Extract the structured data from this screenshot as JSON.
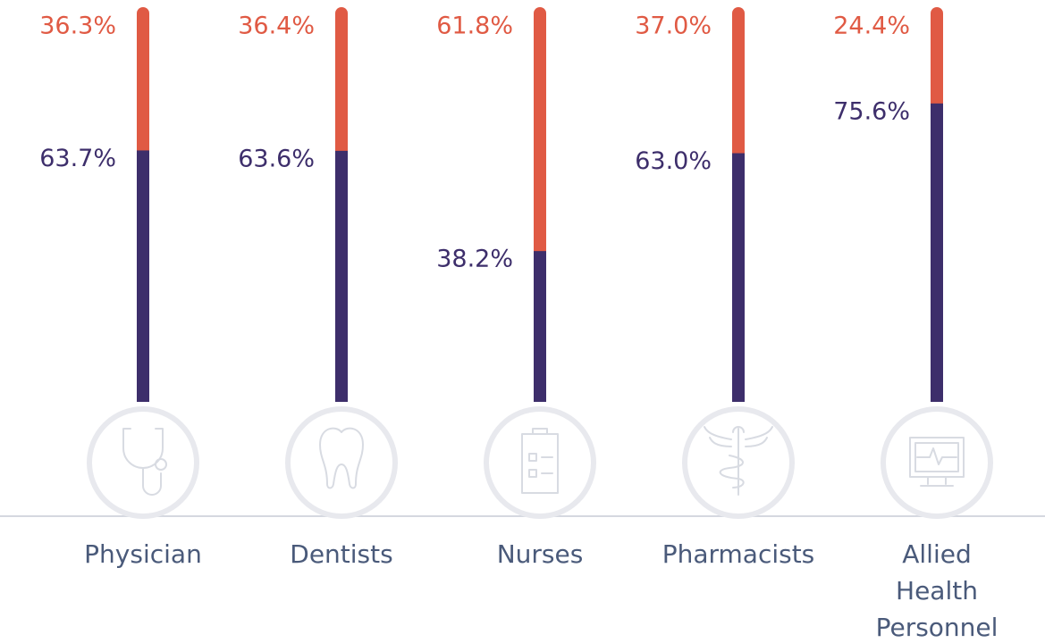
{
  "chart_data": {
    "type": "bar",
    "stacked": true,
    "categories": [
      "Physician",
      "Dentists",
      "Nurses",
      "Pharmacists",
      "Allied Health Personnel"
    ],
    "series": [
      {
        "color": "#3d2e6b",
        "values": [
          63.7,
          63.6,
          38.2,
          63.0,
          75.6
        ],
        "value_labels": [
          "63.7%",
          "63.6%",
          "38.2%",
          "63.0%",
          "75.6%"
        ]
      },
      {
        "color": "#e05a44",
        "values": [
          36.3,
          36.4,
          61.8,
          37.0,
          24.4
        ],
        "value_labels": [
          "36.3%",
          "36.4%",
          "61.8%",
          "37.0%",
          "24.4%"
        ]
      }
    ],
    "ylim": [
      0,
      100
    ]
  }
}
